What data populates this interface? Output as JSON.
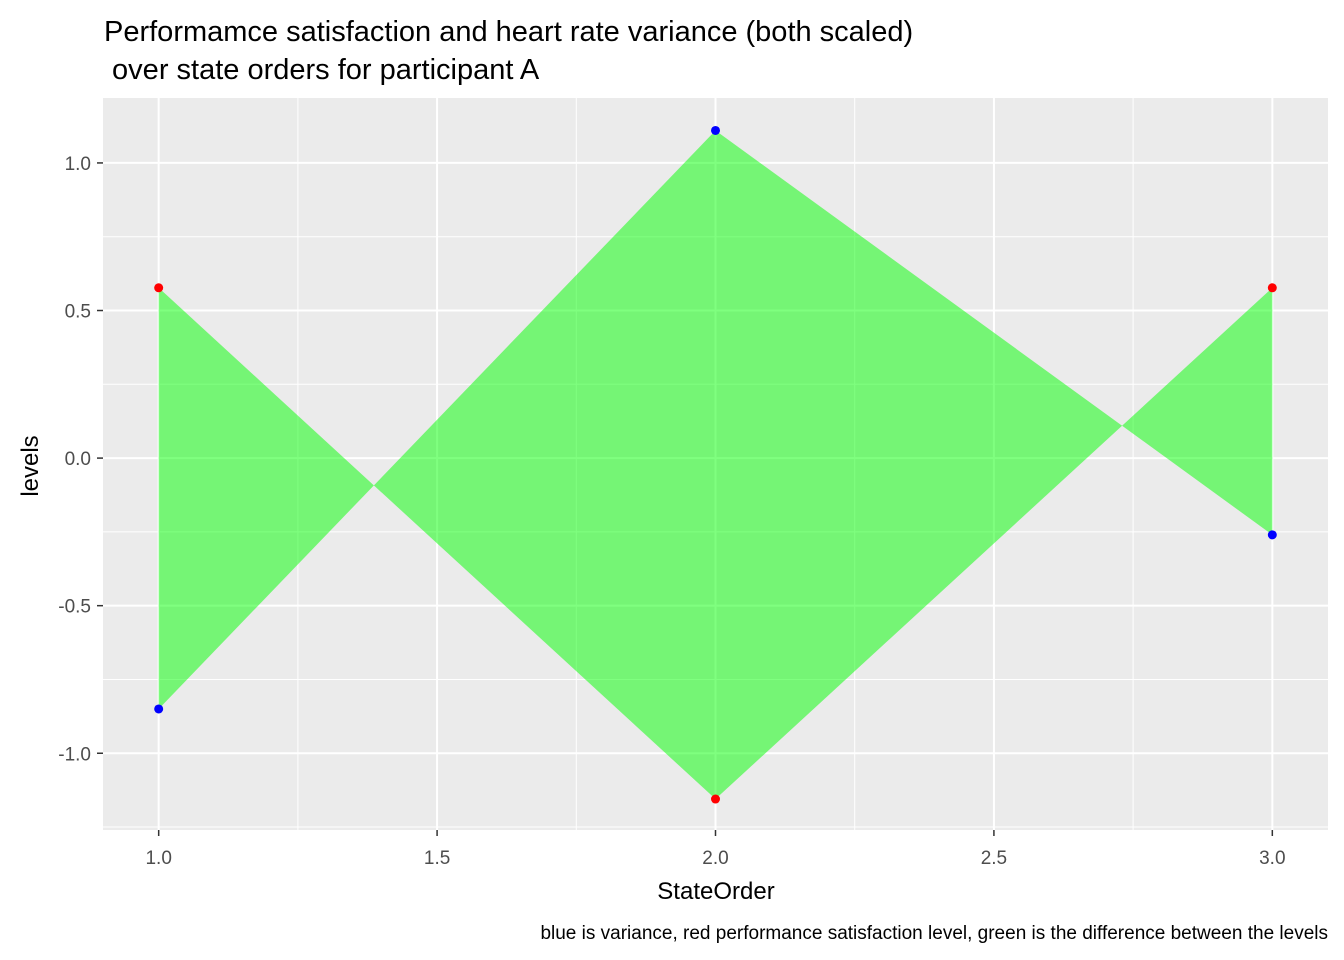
{
  "chart_data": {
    "type": "area",
    "title_line1": "Performamce satisfaction and heart rate variance (both scaled)",
    "title_line2": " over state orders for participant A",
    "xlabel": "StateOrder",
    "ylabel": "levels",
    "caption": "blue is variance, red performance satisfaction level, green is the difference between the levels",
    "x": [
      1.0,
      2.0,
      3.0
    ],
    "series": [
      {
        "key": "variance",
        "color": "#0000ff",
        "values": [
          -0.85,
          1.11,
          -0.26
        ]
      },
      {
        "key": "satisfaction",
        "color": "#ff0000",
        "values": [
          0.577,
          -1.155,
          0.577
        ]
      }
    ],
    "fill_color": "#00ff00",
    "fill_opacity": 0.5,
    "xlim": [
      0.9,
      3.1
    ],
    "ylim": [
      -1.26,
      1.22
    ],
    "x_ticks": [
      "1.0",
      "1.5",
      "2.0",
      "2.5",
      "3.0"
    ],
    "y_ticks": [
      "-1.0",
      "-0.5",
      "0.0",
      "0.5",
      "1.0"
    ],
    "panel_background": "#ebebeb",
    "grid": true
  }
}
